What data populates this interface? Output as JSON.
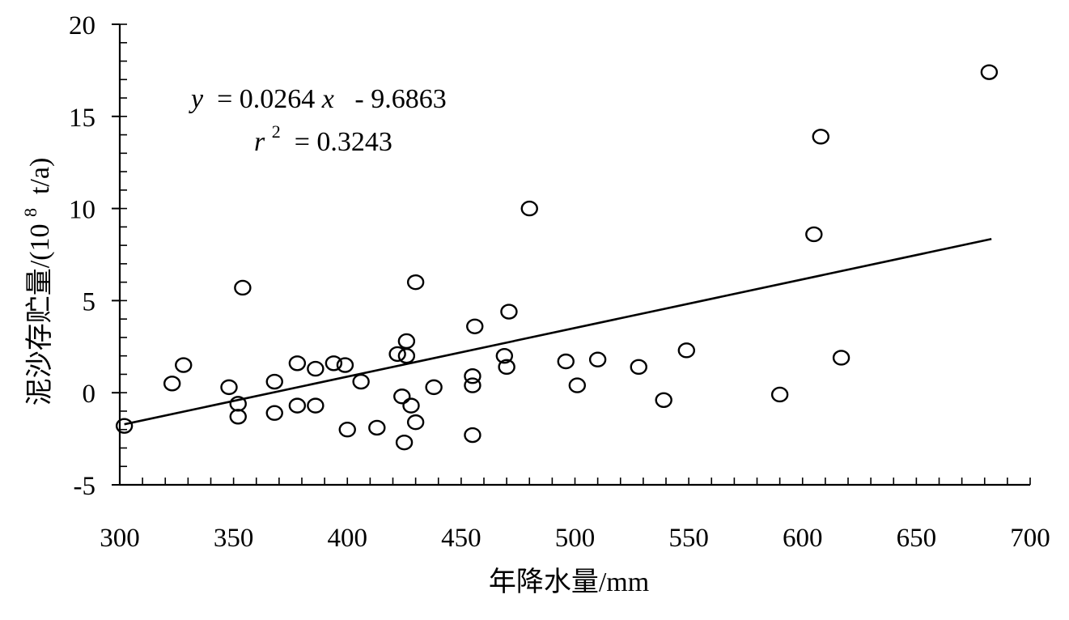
{
  "chart_data": {
    "type": "scatter",
    "xlabel": "年降水量/mm",
    "ylabel_main": "泥沙存贮量/(10",
    "ylabel_sup": "8",
    "ylabel_tail": " t/a)",
    "xlim": [
      300,
      700
    ],
    "ylim": [
      -5,
      20
    ],
    "x_ticks": [
      300,
      350,
      400,
      450,
      500,
      550,
      600,
      650,
      700
    ],
    "x_tick_labels": [
      "300",
      "350",
      "400",
      "450",
      "500",
      "550",
      "600",
      "650",
      "700"
    ],
    "y_ticks": [
      -5,
      0,
      5,
      10,
      15,
      20
    ],
    "y_tick_labels": [
      "-5",
      "0",
      "5",
      "10",
      "15",
      "20"
    ],
    "x_minor_step": 10,
    "y_minor_step": 1,
    "equation": {
      "y_var": "y",
      "eq_rest": " = 0.0264",
      "x_var": "x",
      "eq_tail": "  - 9.6863",
      "r_var": "r",
      "r_sup": "2",
      "r_rest": " = 0.3243"
    },
    "trendline": {
      "slope": 0.0264,
      "intercept": -9.6863,
      "x_start": 302,
      "x_end": 683
    },
    "points": [
      {
        "x": 302,
        "y": -1.8
      },
      {
        "x": 323,
        "y": 0.5
      },
      {
        "x": 328,
        "y": 1.5
      },
      {
        "x": 348,
        "y": 0.3
      },
      {
        "x": 352,
        "y": -0.6
      },
      {
        "x": 352,
        "y": -1.3
      },
      {
        "x": 354,
        "y": 5.7
      },
      {
        "x": 368,
        "y": 0.6
      },
      {
        "x": 368,
        "y": -1.1
      },
      {
        "x": 378,
        "y": 1.6
      },
      {
        "x": 378,
        "y": -0.7
      },
      {
        "x": 386,
        "y": 1.3
      },
      {
        "x": 386,
        "y": -0.7
      },
      {
        "x": 394,
        "y": 1.6
      },
      {
        "x": 399,
        "y": 1.5
      },
      {
        "x": 400,
        "y": -2.0
      },
      {
        "x": 406,
        "y": 0.6
      },
      {
        "x": 413,
        "y": -1.9
      },
      {
        "x": 422,
        "y": 2.1
      },
      {
        "x": 424,
        "y": -0.2
      },
      {
        "x": 425,
        "y": -2.7
      },
      {
        "x": 426,
        "y": 2.8
      },
      {
        "x": 426,
        "y": 2.0
      },
      {
        "x": 428,
        "y": -0.7
      },
      {
        "x": 430,
        "y": 6.0
      },
      {
        "x": 430,
        "y": -1.6
      },
      {
        "x": 438,
        "y": 0.3
      },
      {
        "x": 455,
        "y": -2.3
      },
      {
        "x": 455,
        "y": 0.9
      },
      {
        "x": 455,
        "y": 0.4
      },
      {
        "x": 456,
        "y": 3.6
      },
      {
        "x": 469,
        "y": 2.0
      },
      {
        "x": 470,
        "y": 1.4
      },
      {
        "x": 471,
        "y": 4.4
      },
      {
        "x": 480,
        "y": 10.0
      },
      {
        "x": 496,
        "y": 1.7
      },
      {
        "x": 501,
        "y": 0.4
      },
      {
        "x": 510,
        "y": 1.8
      },
      {
        "x": 528,
        "y": 1.4
      },
      {
        "x": 539,
        "y": -0.4
      },
      {
        "x": 549,
        "y": 2.3
      },
      {
        "x": 590,
        "y": -0.1
      },
      {
        "x": 605,
        "y": 8.6
      },
      {
        "x": 608,
        "y": 13.9
      },
      {
        "x": 617,
        "y": 1.9
      },
      {
        "x": 682,
        "y": 17.4
      }
    ]
  }
}
